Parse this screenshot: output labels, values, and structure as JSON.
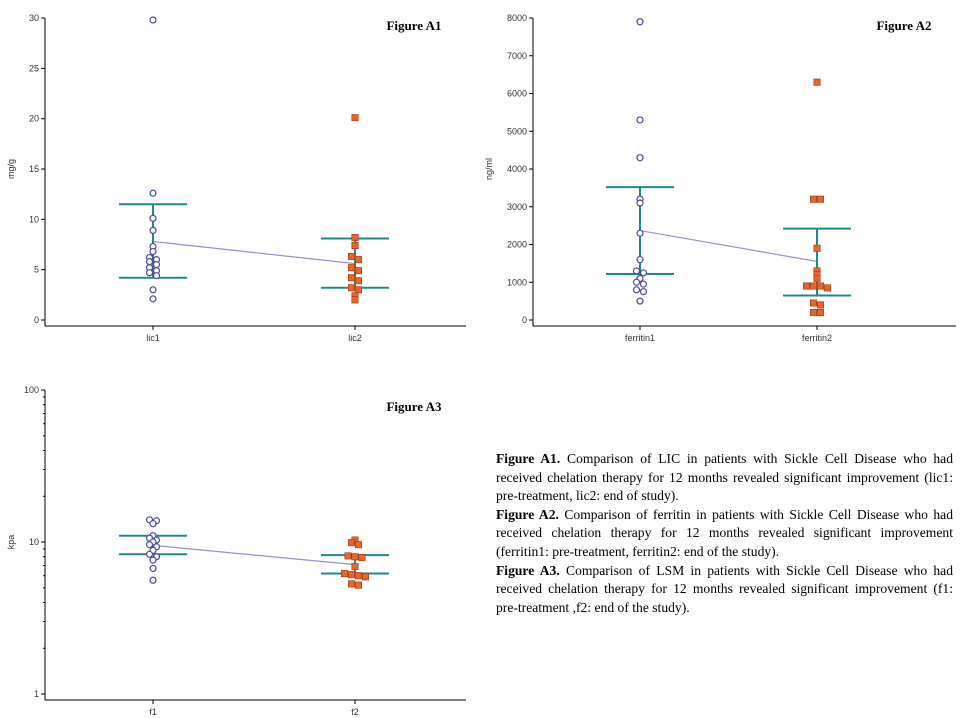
{
  "colors": {
    "pre_marker": "#4b4b9a",
    "post_marker": "#e8642a",
    "post_marker_edge": "#9a3a12",
    "error_bar": "#1f8a8a",
    "mean_line": "#9a90c8"
  },
  "chart_data": [
    {
      "id": "a1",
      "type": "scatter",
      "title": "Figure A1",
      "xlabel": "",
      "ylabel": "mg/g",
      "yscale": "linear",
      "ylim": [
        0,
        30
      ],
      "yticks": [
        0,
        5,
        10,
        15,
        20,
        25,
        30
      ],
      "categories": [
        "lic1",
        "lic2"
      ],
      "series": [
        {
          "name": "lic1",
          "values": [
            29.8,
            12.6,
            10.1,
            8.9,
            7.3,
            6.8,
            6.2,
            6.0,
            5.8,
            5.5,
            5.2,
            4.9,
            4.7,
            4.4,
            3.0,
            2.1
          ]
        },
        {
          "name": "lic2",
          "values": [
            20.1,
            8.2,
            7.4,
            6.3,
            6.0,
            5.2,
            4.9,
            4.2,
            3.9,
            3.2,
            3.0,
            2.4,
            2.0
          ]
        }
      ],
      "error_bars": [
        {
          "upper": 11.5,
          "lower": 4.2
        },
        {
          "upper": 8.1,
          "lower": 3.2
        }
      ],
      "means": [
        7.8,
        5.6
      ]
    },
    {
      "id": "a2",
      "type": "scatter",
      "title": "Figure A2",
      "xlabel": "",
      "ylabel": "ng/ml",
      "yscale": "linear",
      "ylim": [
        0,
        8000
      ],
      "yticks": [
        0,
        1000,
        2000,
        3000,
        4000,
        5000,
        6000,
        7000,
        8000
      ],
      "categories": [
        "ferritin1",
        "ferritin2"
      ],
      "series": [
        {
          "name": "ferritin1",
          "values": [
            7900,
            5300,
            4300,
            3200,
            3100,
            2300,
            1600,
            1300,
            1250,
            1100,
            1000,
            950,
            800,
            750,
            500
          ]
        },
        {
          "name": "ferritin2",
          "values": [
            6300,
            3200,
            3200,
            1900,
            1300,
            1200,
            1100,
            900,
            900,
            900,
            850,
            450,
            400,
            200,
            200
          ]
        }
      ],
      "error_bars": [
        {
          "upper": 3520,
          "lower": 1220
        },
        {
          "upper": 2420,
          "lower": 650
        }
      ],
      "means": [
        2370,
        1550
      ]
    },
    {
      "id": "a3",
      "type": "scatter",
      "title": "Figure A3",
      "xlabel": "",
      "ylabel": "kpa",
      "yscale": "log",
      "ylim": [
        1,
        100
      ],
      "yticks": [
        1,
        10,
        100
      ],
      "categories": [
        "f1",
        "f2"
      ],
      "series": [
        {
          "name": "f1",
          "values": [
            14.0,
            13.8,
            13.2,
            11.0,
            10.6,
            10.3,
            10.0,
            9.6,
            9.3,
            8.8,
            8.3,
            8.0,
            7.6,
            6.7,
            5.6
          ]
        },
        {
          "name": "f2",
          "values": [
            10.3,
            9.9,
            9.6,
            8.1,
            8.0,
            7.9,
            6.9,
            6.2,
            6.1,
            6.0,
            5.9,
            5.3,
            5.2
          ]
        }
      ],
      "error_bars": [
        {
          "upper": 11.0,
          "lower": 8.3
        },
        {
          "upper": 8.2,
          "lower": 6.2
        }
      ],
      "means": [
        9.5,
        7.1
      ]
    }
  ],
  "caption": {
    "a1_label": "Figure A1.",
    "a1_text": " Comparison of LIC  in patients with Sickle Cell Disease who had received chelation therapy for 12 months revealed significant improvement (lic1: pre-treatment, lic2: end of study).",
    "a2_label": "Figure A2.",
    "a2_text": " Comparison of ferritin  in patients with Sickle Cell Disease who had received chelation therapy for 12 months revealed significant improvement (ferritin1: pre-treatment, ferritin2: end of the study).",
    "a3_label": "Figure A3.",
    "a3_text": " Comparison of LSM  in patients with Sickle Cell Disease who had received chelation therapy for 12 months revealed significant improvement (f1: pre-treatment ,f2: end of the study)."
  }
}
